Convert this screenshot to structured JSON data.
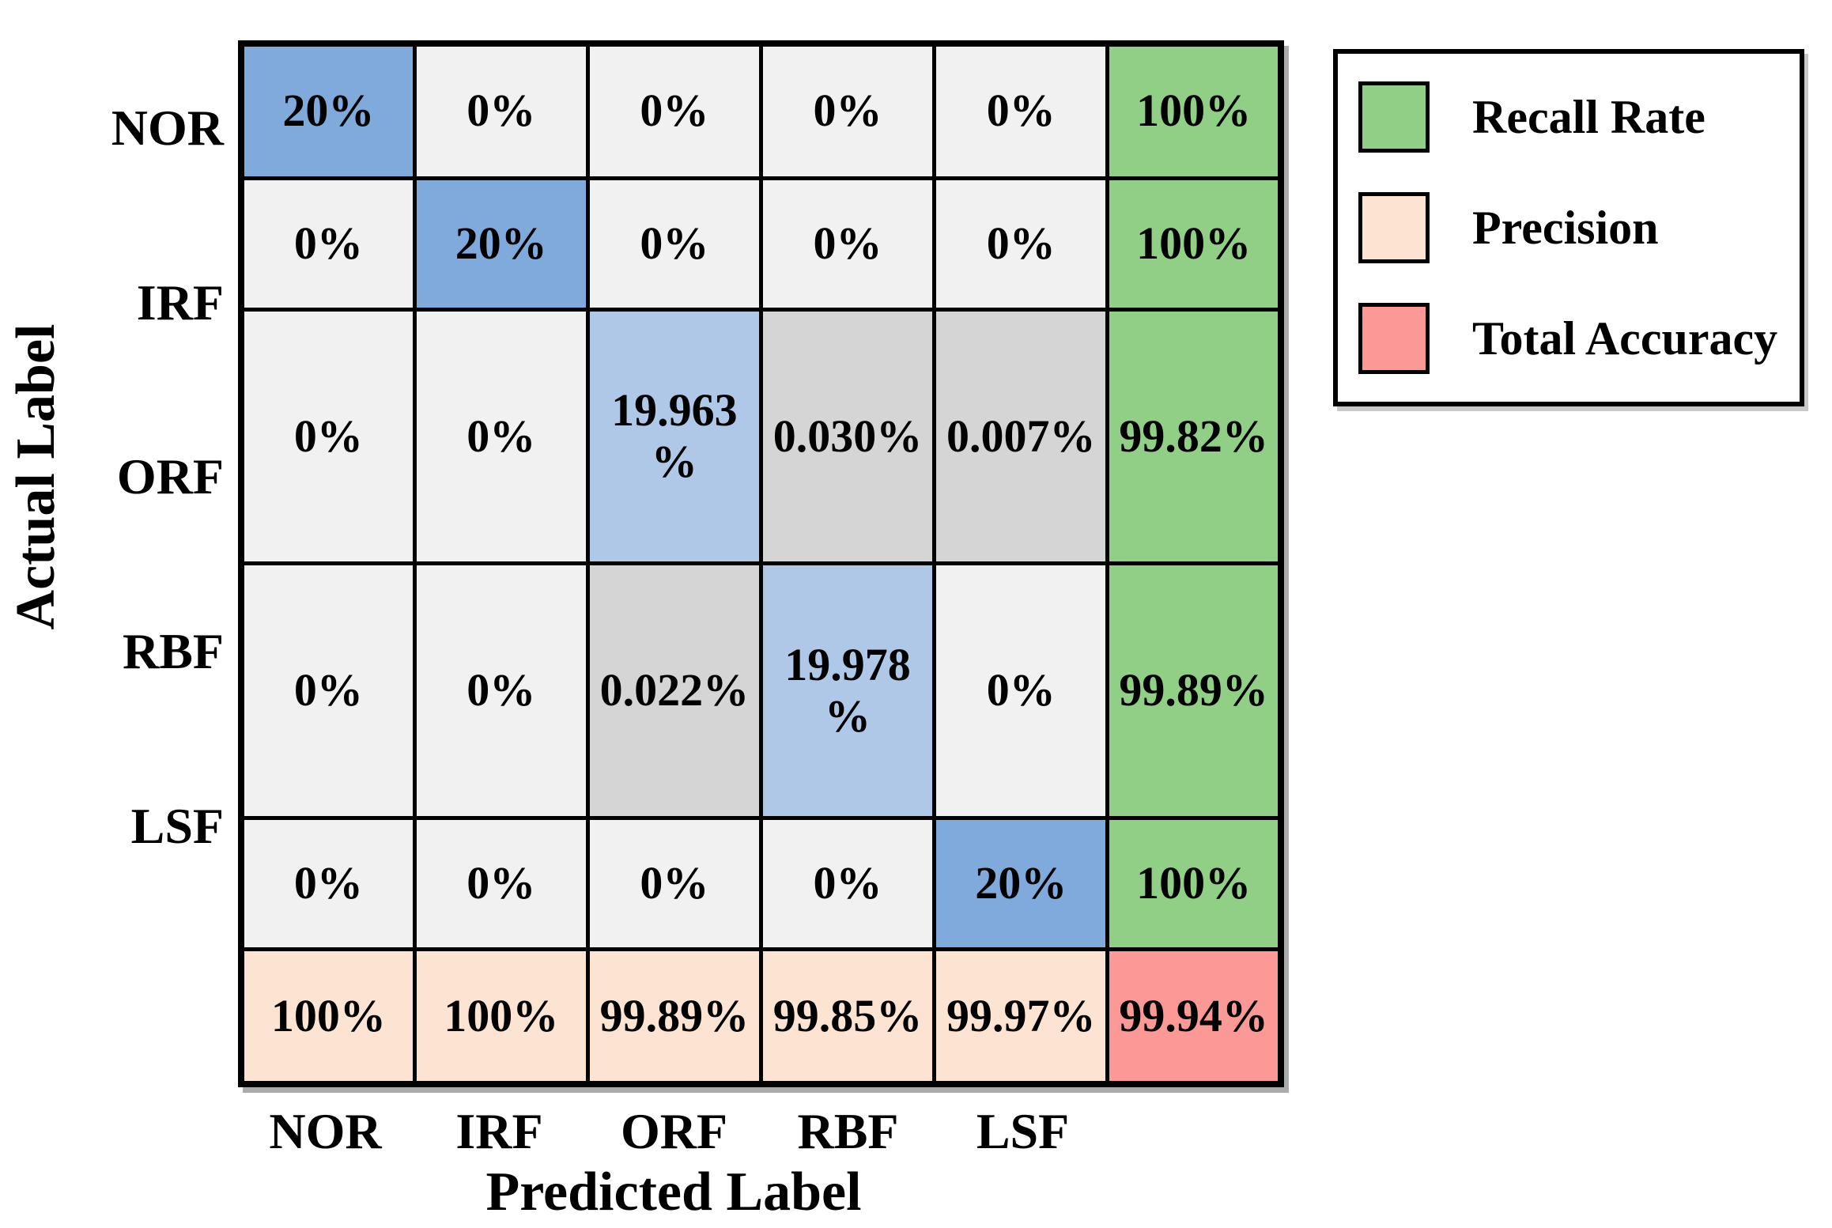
{
  "figure": {
    "background": "#ffffff"
  },
  "chart_data": {
    "type": "heatmap",
    "subtype": "confusion-matrix",
    "title": "",
    "xlabel": "Predicted Label",
    "ylabel": "Actual Label",
    "x_ticklabels": [
      "NOR",
      "IRF",
      "ORF",
      "RBF",
      "LSF"
    ],
    "y_ticklabels": [
      "NOR",
      "IRF",
      "ORF",
      "RBF",
      "LSF"
    ],
    "matrix": [
      [
        "20%",
        "0%",
        "0%",
        "0%",
        "0%",
        "100%"
      ],
      [
        "0%",
        "20%",
        "0%",
        "0%",
        "0%",
        "100%"
      ],
      [
        "0%",
        "0%",
        "19.963\n%",
        "0.030%",
        "0.007%",
        "99.82%"
      ],
      [
        "0%",
        "0%",
        "0.022%",
        "19.978\n%",
        "0%",
        "99.89%"
      ],
      [
        "0%",
        "0%",
        "0%",
        "0%",
        "20%",
        "100%"
      ],
      [
        "100%",
        "100%",
        "99.89%",
        "99.85%",
        "99.97%",
        "99.94%"
      ]
    ],
    "matrix_numeric_percent": [
      [
        20,
        0,
        0,
        0,
        0,
        100
      ],
      [
        0,
        20,
        0,
        0,
        0,
        100
      ],
      [
        0,
        0,
        19.963,
        0.03,
        0.007,
        99.82
      ],
      [
        0,
        0,
        0.022,
        19.978,
        0,
        99.89
      ],
      [
        0,
        0,
        0,
        0,
        20,
        100
      ],
      [
        100,
        100,
        99.89,
        99.85,
        99.97,
        99.94
      ]
    ],
    "recall_rate_column": [
      "100%",
      "100%",
      "99.82%",
      "99.89%",
      "100%"
    ],
    "precision_row": [
      "100%",
      "100%",
      "99.89%",
      "99.85%",
      "99.97%"
    ],
    "total_accuracy": "99.94%",
    "legend": [
      {
        "label": "Recall Rate"
      },
      {
        "label": "Precision"
      },
      {
        "label": "Total Accuracy"
      }
    ],
    "legend_position": "outside upper right",
    "grid": "on"
  },
  "colors": {
    "diagonal": "#80A9DC",
    "diagonal-soft": "#B0C8E8",
    "minor": "#D5D5D5",
    "zero": "#F1F1F1",
    "recall": "#91CF86",
    "precision": "#FDE4D2",
    "total": "#FB9997",
    "border": "#000000",
    "text": "#000000"
  }
}
